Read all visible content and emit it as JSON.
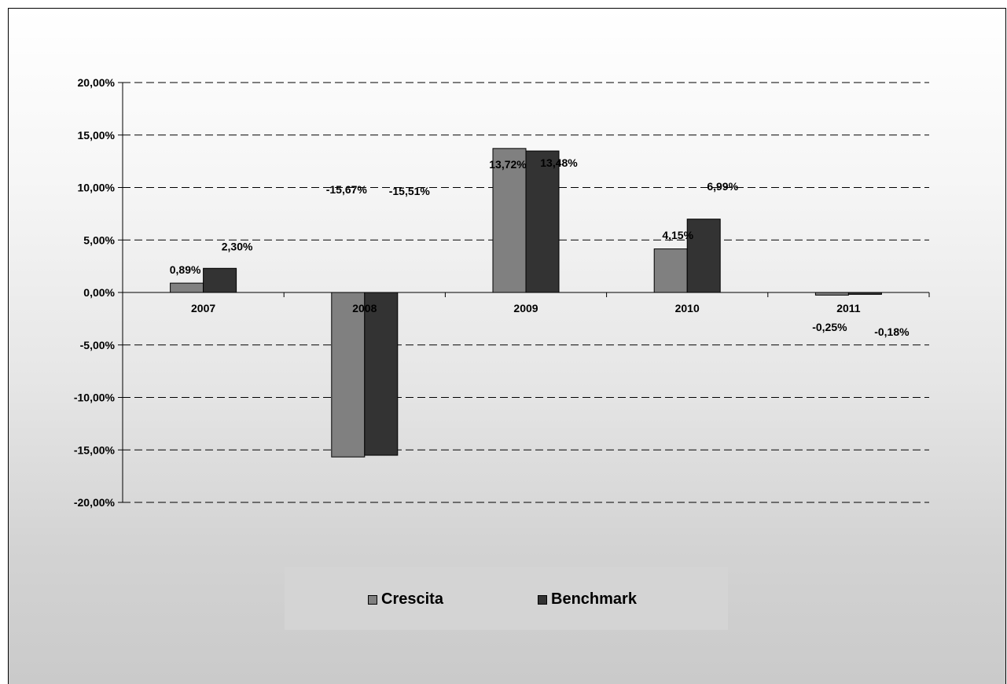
{
  "chart_data": {
    "type": "bar",
    "categories": [
      "2007",
      "2008",
      "2009",
      "2010",
      "2011"
    ],
    "series": [
      {
        "name": "Crescita",
        "values": [
          0.89,
          -15.67,
          13.72,
          4.15,
          -0.25
        ],
        "labels": [
          "0,89%",
          "-15,67%",
          "13,72%",
          "4,15%",
          "-0,25%"
        ],
        "color": "#808080"
      },
      {
        "name": "Benchmark",
        "values": [
          2.3,
          -15.51,
          13.48,
          6.99,
          -0.18
        ],
        "labels": [
          "2,30%",
          "-15,51%",
          "13,48%",
          "6,99%",
          "-0,18%"
        ],
        "color": "#333333"
      }
    ],
    "yticks": [
      20,
      15,
      10,
      5,
      0,
      -5,
      -10,
      -15,
      -20
    ],
    "ytick_labels": [
      "20,00%",
      "15,00%",
      "10,00%",
      "5,00%",
      "0,00%",
      "-5,00%",
      "-10,00%",
      "-15,00%",
      "-20,00%"
    ],
    "ylim": [
      -20,
      20
    ],
    "grid": "dashed horizontal",
    "legend": "bottom",
    "title": "",
    "xlabel": "",
    "ylabel": ""
  }
}
